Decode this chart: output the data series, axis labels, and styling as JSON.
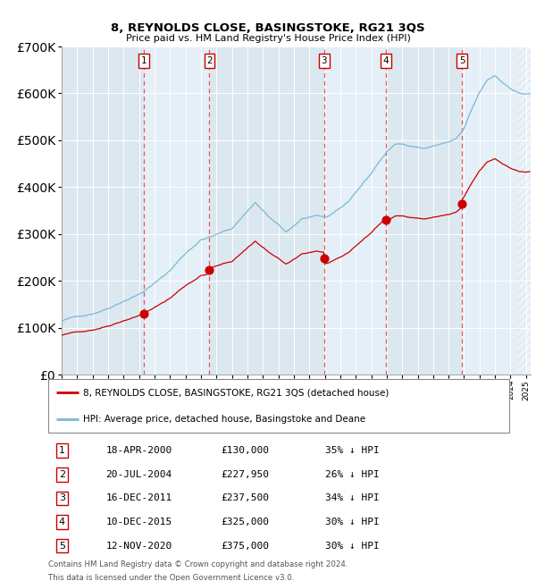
{
  "title": "8, REYNOLDS CLOSE, BASINGSTOKE, RG21 3QS",
  "subtitle": "Price paid vs. HM Land Registry's House Price Index (HPI)",
  "legend_line1": "8, REYNOLDS CLOSE, BASINGSTOKE, RG21 3QS (detached house)",
  "legend_line2": "HPI: Average price, detached house, Basingstoke and Deane",
  "footnote1": "Contains HM Land Registry data © Crown copyright and database right 2024.",
  "footnote2": "This data is licensed under the Open Government Licence v3.0.",
  "sale_dates_num": [
    2000.29,
    2004.55,
    2011.96,
    2015.94,
    2020.87
  ],
  "sale_prices": [
    130000,
    227950,
    237500,
    325000,
    375000
  ],
  "sale_labels": [
    "1",
    "2",
    "3",
    "4",
    "5"
  ],
  "sale_info": [
    [
      "1",
      "18-APR-2000",
      "£130,000",
      "35% ↓ HPI"
    ],
    [
      "2",
      "20-JUL-2004",
      "£227,950",
      "26% ↓ HPI"
    ],
    [
      "3",
      "16-DEC-2011",
      "£237,500",
      "34% ↓ HPI"
    ],
    [
      "4",
      "10-DEC-2015",
      "£325,000",
      "30% ↓ HPI"
    ],
    [
      "5",
      "12-NOV-2020",
      "£375,000",
      "30% ↓ HPI"
    ]
  ],
  "hpi_color": "#7ab8d9",
  "sale_color": "#cc0000",
  "dashed_line_color": "#ee4444",
  "shade_color": "#ddeeff",
  "hatch_color": "#ccddee",
  "ylim": [
    0,
    700000
  ],
  "xlim_start": 1995.0,
  "xlim_end": 2025.3,
  "background_color": "#dce8f0"
}
